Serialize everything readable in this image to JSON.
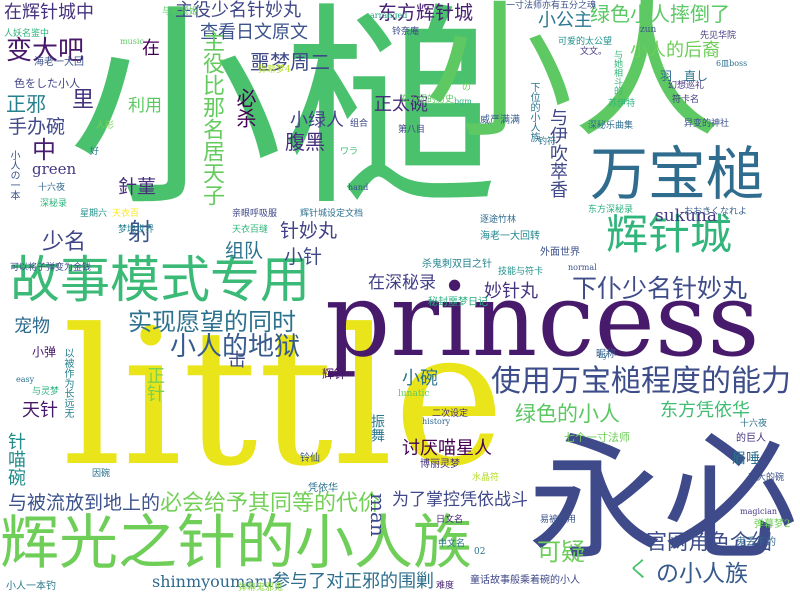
{
  "words": [
    {
      "text": "小槌",
      "color": "#4ac16d"
    },
    {
      "text": "小人",
      "color": "#5ec962"
    },
    {
      "text": "little",
      "color": "#e9e51a"
    },
    {
      "text": "princess",
      "color": "#481a6c"
    },
    {
      "text": "永必",
      "color": "#3e4a89"
    },
    {
      "text": "辉光之针的小人族",
      "color": "#6ece58"
    },
    {
      "text": "故事模式专用",
      "color": "#3aba76"
    },
    {
      "text": "万宝槌",
      "color": "#2f6c8e"
    },
    {
      "text": "辉针城",
      "color": "#31b57b"
    },
    {
      "text": "使用万宝槌程度的能力",
      "color": "#3d4d8a"
    },
    {
      "text": "下仆少名针妙丸",
      "color": "#3e4c8a"
    },
    {
      "text": "小人的地狱",
      "color": "#375b8d"
    },
    {
      "text": "实现愿望的同时",
      "color": "#2c728e"
    },
    {
      "text": "必会给予其同等的代价",
      "color": "#73d056"
    },
    {
      "text": "与被流放到地上的",
      "color": "#3b528b"
    },
    {
      "text": "参与了对正邪的围剿",
      "color": "#2e6f8e"
    },
    {
      "text": "官网角色介绍",
      "color": "#3d4e8a"
    },
    {
      "text": "の小人族",
      "color": "#375a8c"
    },
    {
      "text": "可疑",
      "color": "#6ccd5a"
    },
    {
      "text": "绿色的小人",
      "color": "#5cc863"
    },
    {
      "text": "东方凭依华",
      "color": "#40bd72"
    },
    {
      "text": "讨厌喵星人",
      "color": "#440154"
    },
    {
      "text": "为了掌控凭依战斗",
      "color": "#3f4889"
    },
    {
      "text": "shinmyoumaru",
      "color": "#31688e"
    },
    {
      "text": "在深秘录",
      "color": "#424086"
    },
    {
      "text": "妙针丸",
      "color": "#46337e"
    },
    {
      "text": "杀鬼刺双目之针",
      "color": "#25838e"
    },
    {
      "text": "在辉针城中",
      "color": "#46327e"
    },
    {
      "text": "主役少名针妙丸",
      "color": "#3f4788"
    },
    {
      "text": "东方辉针城",
      "color": "#482173"
    },
    {
      "text": "绿色小人摔倒了",
      "color": "#5ac864"
    },
    {
      "text": "查看日文原文",
      "color": "#3b528b"
    },
    {
      "text": "小公主",
      "color": "#2a778e"
    },
    {
      "text": "小人的后裔",
      "color": "#6ece58"
    },
    {
      "text": "变大吧",
      "color": "#48186a"
    },
    {
      "text": "噩梦周二",
      "color": "#3e4989"
    },
    {
      "text": "必杀",
      "color": "#440154"
    },
    {
      "text": "正邪",
      "color": "#27808e"
    },
    {
      "text": "里",
      "color": "#46337f"
    },
    {
      "text": "正太碗",
      "color": "#472c7a"
    },
    {
      "text": "手办碗",
      "color": "#3f4889"
    },
    {
      "text": "小绿人",
      "color": "#414287"
    },
    {
      "text": "腹黑",
      "color": "#46307e"
    },
    {
      "text": "針菫",
      "color": "#472d7b"
    },
    {
      "text": "主役比那名居天子",
      "color": "#65cb5e"
    },
    {
      "text": "射",
      "color": "#3b528b"
    },
    {
      "text": "针妙丸",
      "color": "#424186"
    },
    {
      "text": "组队",
      "color": "#2c718e"
    },
    {
      "text": "小针",
      "color": "#3e4a89"
    },
    {
      "text": "少名",
      "color": "#3f4788"
    },
    {
      "text": "宠物",
      "color": "#2f6b8e"
    },
    {
      "text": "正针",
      "color": "#7ad151"
    },
    {
      "text": "天针",
      "color": "#48186a"
    },
    {
      "text": "针喵碗",
      "color": "#218e8d"
    },
    {
      "text": "小碗",
      "color": "#2c728e"
    },
    {
      "text": "man",
      "color": "#3e4a89"
    },
    {
      "text": "sukuna",
      "color": "#453781"
    },
    {
      "text": "green",
      "color": "#443983"
    },
    {
      "text": "中",
      "color": "#481f70"
    },
    {
      "text": "在",
      "color": "#440154"
    },
    {
      "text": "利用",
      "color": "#5ec962"
    },
    {
      "text": "击",
      "color": "#3e4a89"
    },
    {
      "text": "辉针",
      "color": "#481467"
    },
    {
      "text": "く",
      "color": "#4ac16d"
    },
    {
      "text": "振舞",
      "color": "#2a768e"
    },
    {
      "text": "小弹",
      "color": "#48186a"
    },
    {
      "text": "以被作为长远无",
      "color": "#26828e"
    },
    {
      "text": "与伊吹萃香",
      "color": "#3f4889"
    },
    {
      "text": "下位的小人族",
      "color": "#2b758e"
    },
    {
      "text": "与若鹭姬",
      "color": "#5cc863"
    },
    {
      "text": "一寸法师亦有五分之魂",
      "color": "#3b518b"
    },
    {
      "text": "arranged",
      "color": "#22a785"
    },
    {
      "text": "铃奈庵",
      "color": "#3e4989"
    },
    {
      "text": "可爱的太公望",
      "color": "#21918c"
    },
    {
      "text": "先见华院",
      "color": "#443a83"
    },
    {
      "text": "の",
      "color": "#6ece58"
    },
    {
      "text": "zun",
      "color": "#3b528b"
    },
    {
      "text": "人妖名鉴中",
      "color": "#2fb47c"
    },
    {
      "text": "music",
      "color": "#5ec962"
    },
    {
      "text": "弹幕梦4",
      "color": "#b5de2b"
    },
    {
      "text": "文文。",
      "color": "#453882"
    },
    {
      "text": "与她相斗的",
      "color": "#35b779"
    },
    {
      "text": "羽",
      "color": "#31688e"
    },
    {
      "text": "直し",
      "color": "#2c728e"
    },
    {
      "text": "幻想巡礼",
      "color": "#453882"
    },
    {
      "text": "符卡名",
      "color": "#433e85"
    },
    {
      "text": "6皿boss",
      "color": "#2c728e"
    },
    {
      "text": "海老一大回",
      "color": "#3b528b"
    },
    {
      "text": "色をした小人",
      "color": "#414487"
    },
    {
      "text": "bgm",
      "color": "#2db27d"
    },
    {
      "text": "威严满满",
      "color": "#365c8d"
    },
    {
      "text": "苏伊特",
      "color": "#2fb47c"
    },
    {
      "text": "深秘乐曲集",
      "color": "#2e6d8e"
    },
    {
      "text": "异变的神社",
      "color": "#3b528b"
    },
    {
      "text": "人形",
      "color": "#7ad151"
    },
    {
      "text": "钓符",
      "color": "#2c728e"
    },
    {
      "text": "组合",
      "color": "#3e4a89"
    },
    {
      "text": "第八目",
      "color": "#404588"
    },
    {
      "text": "玄乐团的历史",
      "color": "#5ec962"
    },
    {
      "text": "ワラ",
      "color": "#3fbc73"
    },
    {
      "text": "好",
      "color": "#2a788e"
    },
    {
      "text": "小人の一本",
      "color": "#3b528b"
    },
    {
      "text": "十六夜",
      "color": "#31688e"
    },
    {
      "text": "深秘录",
      "color": "#2fb47c"
    },
    {
      "text": "星期六",
      "color": "#21918c"
    },
    {
      "text": "天衣百",
      "color": "#fde725"
    },
    {
      "text": "梦境世界",
      "color": "#287c8e"
    },
    {
      "text": "天衣百缝",
      "color": "#31b57b"
    },
    {
      "text": "亲眼呼吸服",
      "color": "#3f4889"
    },
    {
      "text": "辉针城设定文档",
      "color": "#2c718e"
    },
    {
      "text": "逐途竹林",
      "color": "#2f6c8e"
    },
    {
      "text": "东方深秘录",
      "color": "#29af7f"
    },
    {
      "text": "おおきくなれよ",
      "color": "#365d8d"
    },
    {
      "text": "海老一大回转",
      "color": "#23888e"
    },
    {
      "text": "外面世界",
      "color": "#3b528b"
    },
    {
      "text": "可以将子弹变为金钱",
      "color": "#3f4889"
    },
    {
      "text": "技能与符卡",
      "color": "#21918c"
    },
    {
      "text": "normal",
      "color": "#3b528b"
    },
    {
      "text": "秘封噩梦日记",
      "color": "#29af7f"
    },
    {
      "text": "history",
      "color": "#31688e"
    },
    {
      "text": "二次设定",
      "color": "#46327e"
    },
    {
      "text": "七个一寸法师",
      "color": "#6ece58"
    },
    {
      "text": "lunatic",
      "color": "#5ec962"
    },
    {
      "text": "昵称",
      "color": "#365c8d"
    },
    {
      "text": "日文名",
      "color": "#482677"
    },
    {
      "text": "中文名",
      "color": "#2c728e"
    },
    {
      "text": "童话故事般乘着碗的小人",
      "color": "#3f4889"
    },
    {
      "text": "难度",
      "color": "#482475"
    },
    {
      "text": "弹幕鬼邪鬼",
      "color": "#8bd646"
    },
    {
      "text": "小人一本钓",
      "color": "#2a788e"
    },
    {
      "text": "弹幕梦2",
      "color": "#6ece58"
    },
    {
      "text": "鬼丢下的",
      "color": "#31688e"
    },
    {
      "text": "眉唾",
      "color": "#2c728e"
    },
    {
      "text": "的巨人",
      "color": "#46327e"
    },
    {
      "text": "变大的碗",
      "color": "#3b528b"
    },
    {
      "text": "十六夜",
      "color": "#2c728e"
    },
    {
      "text": "magician",
      "color": "#443983"
    },
    {
      "text": "易被利用",
      "color": "#3b528b"
    },
    {
      "text": "hand",
      "color": "#3b528b"
    },
    {
      "text": "easy",
      "color": "#2c728e"
    },
    {
      "text": "与灵梦",
      "color": "#2db27d"
    },
    {
      "text": "铃仙",
      "color": "#3b528b"
    },
    {
      "text": "凭依华",
      "color": "#2c728e"
    },
    {
      "text": "博丽灵梦",
      "color": "#46327e"
    },
    {
      "text": "水晶符",
      "color": "#b5de2b"
    },
    {
      "text": "因碗",
      "color": "#2c728e"
    },
    {
      "text": "02",
      "color": "#2c728e"
    },
    {
      "text": "by",
      "color": "#2c728e"
    },
    {
      "text": "辉针城",
      "color": "#31b57b"
    },
    {
      "text": "赤蛮奇",
      "color": "#8bd646"
    },
    {
      "text": "然后",
      "color": "#5ec962"
    },
    {
      "text": "疑惑",
      "color": "#2c728e"
    },
    {
      "text": "灵异名",
      "color": "#35b779"
    },
    {
      "text": "拿了",
      "color": "#5ec962"
    },
    {
      "text": "小人さんが",
      "color": "#3b528b"
    },
    {
      "text": "人妖名鉴",
      "color": "#3b528b"
    },
    {
      "text": "少名",
      "color": "#2c728e"
    },
    {
      "text": "人",
      "color": "#2c728e"
    },
    {
      "text": "可以",
      "color": "#2c728e"
    },
    {
      "text": "音乐",
      "color": "#3b528b"
    },
    {
      "text": "小人族",
      "color": "#2c728e"
    },
    {
      "text": "作为",
      "color": "#3b528b"
    },
    {
      "text": "同时",
      "color": "#2c728e"
    },
    {
      "text": "变得",
      "color": "#3b528b"
    },
    {
      "text": "与",
      "color": "#2c728e"
    },
    {
      "text": "亦",
      "color": "#3b528b"
    },
    {
      "text": "的",
      "color": "#2c728e"
    },
    {
      "text": "能",
      "color": "#3b528b"
    },
    {
      "text": "也",
      "color": "#2c728e"
    },
    {
      "text": "里",
      "color": "#3b528b"
    },
    {
      "text": "故事",
      "color": "#2c728e"
    },
    {
      "text": "小人",
      "color": "#3b528b"
    },
    {
      "text": "剑",
      "color": "#2c728e"
    },
    {
      "text": "碗",
      "color": "#3b528b"
    },
    {
      "text": "针",
      "color": "#2c728e"
    },
    {
      "text": "槌",
      "color": "#3b528b"
    },
    {
      "text": "城",
      "color": "#2c728e"
    }
  ]
}
